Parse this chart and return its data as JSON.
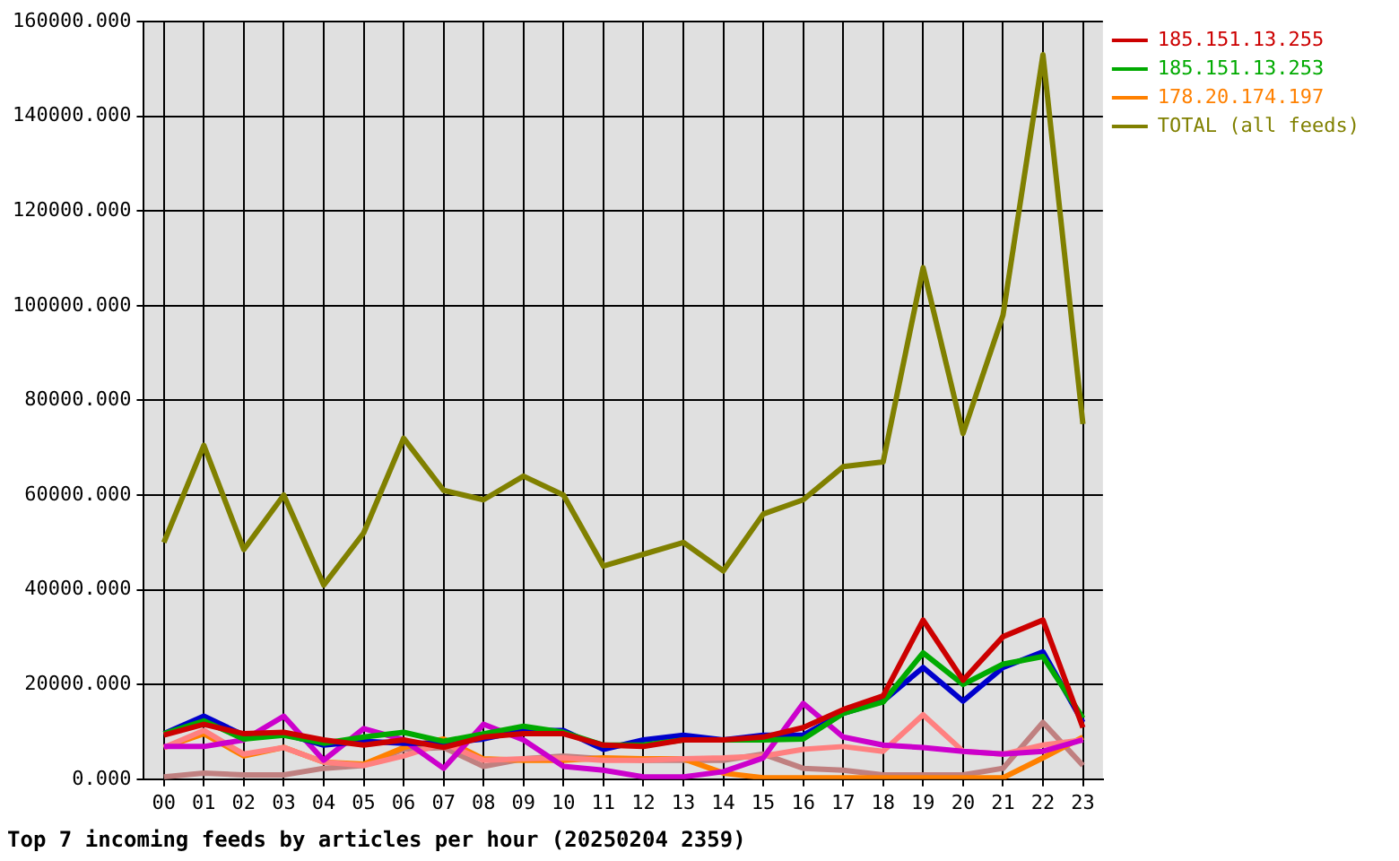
{
  "chart_data": {
    "type": "line",
    "title": "Top 7 incoming feeds by articles per hour (20250204 2359)",
    "categories": [
      "00",
      "01",
      "02",
      "03",
      "04",
      "05",
      "06",
      "07",
      "08",
      "09",
      "10",
      "11",
      "12",
      "13",
      "14",
      "15",
      "16",
      "17",
      "18",
      "19",
      "20",
      "21",
      "22",
      "23"
    ],
    "series": [
      {
        "name": "185.151.13.255",
        "color": "#cc0000",
        "values": [
          9300,
          11600,
          9600,
          9900,
          8300,
          7200,
          8300,
          6700,
          8900,
          9600,
          9600,
          7200,
          6900,
          8300,
          8300,
          8900,
          10900,
          14700,
          17600,
          33600,
          20900,
          30100,
          33600,
          10900
        ]
      },
      {
        "name": "185.151.13.253",
        "color": "#00aa00",
        "values": [
          9600,
          12300,
          8500,
          9300,
          7600,
          8900,
          9900,
          8000,
          9600,
          11200,
          9900,
          7200,
          7200,
          8300,
          8300,
          8300,
          8500,
          13900,
          16300,
          26700,
          20000,
          24300,
          25900,
          12900
        ]
      },
      {
        "color": "#0000cc",
        "values": [
          9600,
          13300,
          9300,
          9600,
          7200,
          8000,
          7600,
          7600,
          8500,
          10300,
          10300,
          6300,
          8300,
          9300,
          8300,
          9300,
          9300,
          13900,
          16500,
          23600,
          16500,
          23600,
          26900,
          12000
        ]
      },
      {
        "color": "#cc00cc",
        "values": [
          6900,
          6900,
          8300,
          13300,
          4000,
          10700,
          8300,
          2300,
          11600,
          8300,
          2700,
          1900,
          500,
          500,
          1600,
          4500,
          16000,
          8900,
          7200,
          6700,
          5900,
          5300,
          5900,
          8300
        ]
      },
      {
        "color": "#ff8080",
        "values": [
          6700,
          10300,
          5300,
          6700,
          3600,
          2900,
          4900,
          7600,
          4000,
          4300,
          4500,
          4000,
          4000,
          4300,
          4500,
          4900,
          6300,
          6900,
          5900,
          13600,
          5900,
          5300,
          7200,
          8300
        ]
      },
      {
        "name": "178.20.174.197",
        "color": "#ff8000",
        "values": [
          6700,
          9600,
          4900,
          6700,
          3600,
          3200,
          6700,
          8500,
          4300,
          4000,
          4000,
          4500,
          4300,
          4300,
          1300,
          300,
          300,
          300,
          300,
          300,
          300,
          300,
          4500,
          8900
        ]
      },
      {
        "color": "#c08080",
        "values": [
          500,
          1300,
          900,
          900,
          2300,
          2900,
          6300,
          6700,
          2700,
          4300,
          4900,
          4300,
          4000,
          4000,
          4000,
          5300,
          2300,
          1900,
          900,
          900,
          900,
          2300,
          12000,
          2900
        ]
      },
      {
        "name": "TOTAL (all feeds)",
        "color": "#808000",
        "values": [
          50000,
          70500,
          48500,
          60000,
          41000,
          52000,
          72000,
          61000,
          59000,
          64000,
          60000,
          45000,
          47500,
          50000,
          44000,
          56000,
          59000,
          66000,
          67000,
          108000,
          73000,
          98000,
          153000,
          75000
        ]
      }
    ],
    "ylim": [
      0,
      160000
    ],
    "yticks": [
      {
        "value": 0,
        "label": "0.000"
      },
      {
        "value": 20000,
        "label": "20000.000"
      },
      {
        "value": 40000,
        "label": "40000.000"
      },
      {
        "value": 60000,
        "label": "60000.000"
      },
      {
        "value": 80000,
        "label": "80000.000"
      },
      {
        "value": 100000,
        "label": "100000.000"
      },
      {
        "value": 120000,
        "label": "120000.000"
      },
      {
        "value": 140000,
        "label": "140000.000"
      },
      {
        "value": 160000,
        "label": "160000.000"
      }
    ],
    "grid": true,
    "legend": "top right",
    "marker": "none",
    "line_style": "solid"
  }
}
